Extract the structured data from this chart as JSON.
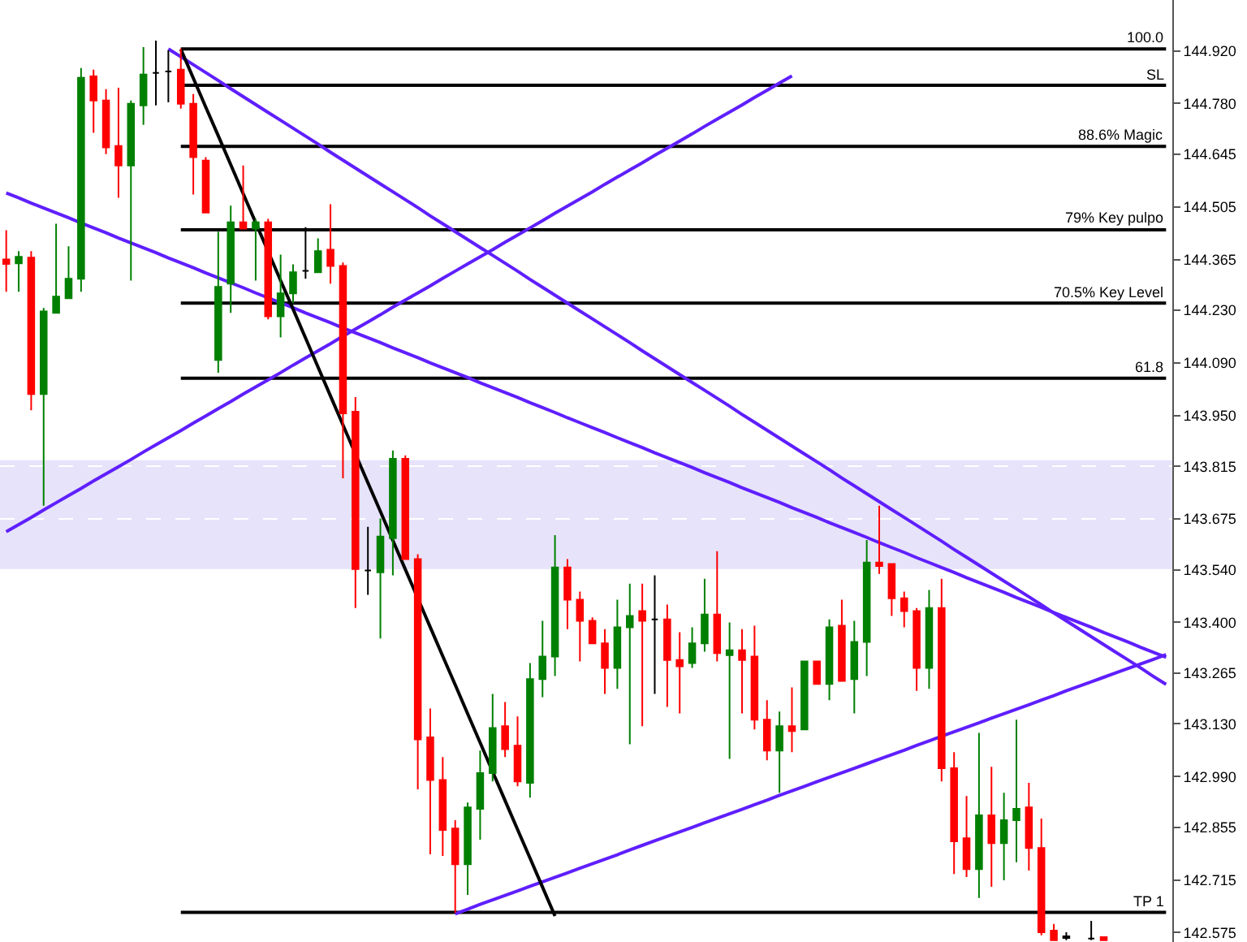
{
  "chart_data": {
    "type": "candlestick",
    "categories": [
      null,
      null,
      null,
      null,
      null,
      null,
      null,
      null,
      null,
      null,
      null,
      null,
      null,
      null,
      null,
      null,
      null,
      null,
      null,
      null,
      null,
      null,
      null,
      null,
      null,
      null,
      null,
      null,
      null,
      null,
      null,
      null,
      null,
      null,
      null,
      null,
      null,
      null,
      null,
      null,
      null,
      null,
      null,
      null,
      null,
      null,
      null,
      null,
      null,
      null,
      null,
      null,
      null,
      null,
      null,
      null,
      null,
      null,
      null,
      null,
      null,
      null,
      null,
      null,
      null,
      null,
      null,
      null,
      null,
      null,
      null,
      null,
      null,
      null,
      null,
      null,
      null,
      null,
      null,
      null,
      null,
      null,
      null,
      null,
      null,
      null,
      null,
      null,
      null,
      null,
      null,
      null,
      null,
      null
    ],
    "ohlc": [
      [
        144.365,
        144.443,
        144.279,
        144.353
      ],
      [
        144.355,
        144.387,
        144.279,
        144.372
      ],
      [
        144.37,
        144.387,
        143.964,
        144.007
      ],
      [
        144.007,
        144.236,
        143.71,
        144.227
      ],
      [
        144.223,
        144.46,
        144.223,
        144.266
      ],
      [
        144.262,
        144.4,
        144.262,
        144.314
      ],
      [
        144.314,
        144.874,
        144.279,
        144.848
      ],
      [
        144.852,
        144.87,
        144.702,
        144.788
      ],
      [
        144.788,
        144.818,
        144.645,
        144.663
      ],
      [
        144.667,
        144.822,
        144.529,
        144.615
      ],
      [
        144.615,
        144.788,
        144.309,
        144.779
      ],
      [
        144.775,
        144.93,
        144.723,
        144.857
      ],
      [
        144.861,
        144.947,
        144.775,
        144.861
      ],
      [
        144.865,
        144.921,
        144.783,
        144.865
      ],
      [
        144.87,
        144.926,
        144.766,
        144.779
      ],
      [
        144.779,
        144.805,
        144.538,
        144.637
      ],
      [
        144.628,
        144.637,
        144.49,
        144.49
      ],
      [
        144.098,
        144.439,
        144.064,
        144.292
      ],
      [
        144.301,
        144.508,
        144.223,
        144.464
      ],
      [
        144.464,
        144.615,
        144.447,
        144.447
      ],
      [
        144.447,
        144.473,
        144.309,
        144.464
      ],
      [
        144.464,
        144.473,
        144.206,
        144.214
      ],
      [
        144.214,
        144.378,
        144.158,
        144.275
      ],
      [
        144.275,
        144.352,
        144.249,
        144.331
      ],
      [
        144.335,
        144.451,
        144.314,
        144.335
      ],
      [
        144.331,
        144.421,
        144.331,
        144.387
      ],
      [
        144.391,
        144.512,
        144.301,
        144.348
      ],
      [
        144.348,
        144.357,
        143.783,
        143.956
      ],
      [
        143.96,
        143.999,
        143.438,
        143.542
      ],
      [
        143.538,
        143.654,
        143.473,
        143.538
      ],
      [
        143.533,
        143.676,
        143.357,
        143.628
      ],
      [
        143.624,
        143.857,
        143.525,
        143.835
      ],
      [
        143.835,
        143.844,
        143.568,
        143.568
      ],
      [
        143.568,
        143.581,
        142.956,
        143.089
      ],
      [
        143.094,
        143.171,
        142.783,
        142.981
      ],
      [
        142.981,
        143.042,
        142.779,
        142.848
      ],
      [
        142.852,
        142.874,
        142.628,
        142.757
      ],
      [
        142.757,
        142.921,
        142.675,
        142.908
      ],
      [
        142.904,
        143.059,
        142.822,
        142.999
      ],
      [
        142.999,
        143.21,
        142.977,
        143.119
      ],
      [
        143.124,
        143.188,
        143.042,
        143.063
      ],
      [
        143.072,
        143.15,
        142.964,
        142.977
      ],
      [
        142.973,
        143.292,
        142.934,
        143.249
      ],
      [
        143.249,
        143.404,
        143.201,
        143.309
      ],
      [
        143.309,
        143.632,
        143.257,
        143.546
      ],
      [
        143.546,
        143.568,
        143.382,
        143.46
      ],
      [
        143.46,
        143.482,
        143.296,
        143.404
      ],
      [
        143.404,
        143.413,
        143.344,
        143.344
      ],
      [
        143.344,
        143.382,
        143.21,
        143.279
      ],
      [
        143.279,
        143.46,
        143.223,
        143.387
      ],
      [
        143.387,
        143.503,
        143.076,
        143.417
      ],
      [
        143.43,
        143.503,
        143.124,
        143.404
      ],
      [
        143.408,
        143.525,
        143.21,
        143.408
      ],
      [
        143.408,
        143.447,
        143.175,
        143.3
      ],
      [
        143.3,
        143.374,
        143.158,
        143.283
      ],
      [
        143.292,
        143.387,
        143.279,
        143.344
      ],
      [
        143.344,
        143.516,
        143.322,
        143.421
      ],
      [
        143.421,
        143.589,
        143.296,
        143.318
      ],
      [
        143.313,
        143.4,
        143.037,
        143.326
      ],
      [
        143.326,
        143.382,
        143.158,
        143.3
      ],
      [
        143.309,
        143.391,
        143.115,
        143.141
      ],
      [
        143.141,
        143.193,
        143.033,
        143.059
      ],
      [
        143.059,
        143.163,
        142.947,
        143.124
      ],
      [
        143.124,
        143.227,
        143.055,
        143.111
      ],
      [
        143.115,
        143.296,
        143.115,
        143.296
      ],
      [
        143.296,
        143.296,
        143.236,
        143.236
      ],
      [
        143.236,
        143.408,
        143.193,
        143.387
      ],
      [
        143.391,
        143.46,
        143.244,
        143.244
      ],
      [
        143.249,
        143.404,
        143.158,
        143.348
      ],
      [
        143.348,
        143.619,
        143.257,
        143.559
      ],
      [
        143.559,
        143.71,
        143.529,
        143.55
      ],
      [
        143.555,
        143.555,
        143.417,
        143.464
      ],
      [
        143.464,
        143.482,
        143.387,
        143.43
      ],
      [
        143.43,
        143.438,
        143.218,
        143.279
      ],
      [
        143.279,
        143.486,
        143.223,
        143.438
      ],
      [
        143.438,
        143.516,
        142.977,
        143.012
      ],
      [
        143.012,
        143.055,
        142.731,
        142.818
      ],
      [
        142.826,
        142.938,
        142.723,
        142.744
      ],
      [
        142.744,
        143.106,
        142.667,
        142.887
      ],
      [
        142.887,
        143.016,
        142.697,
        142.813
      ],
      [
        142.813,
        142.947,
        142.714,
        142.874
      ],
      [
        142.874,
        143.141,
        142.762,
        142.904
      ],
      [
        142.908,
        142.973,
        142.74,
        142.8
      ],
      [
        142.8,
        142.878,
        142.568,
        142.576
      ],
      [
        142.58,
        142.598,
        142.555,
        142.555
      ],
      [
        142.565,
        142.576,
        142.555,
        142.561
      ],
      null,
      [
        142.559,
        142.606,
        142.555,
        142.559
      ],
      [
        142.563,
        142.563,
        142.555,
        142.555
      ],
      null,
      null,
      null,
      null,
      null
    ],
    "colors": [
      "#ff0000",
      "#008000",
      "#ff0000",
      "#008000",
      "#008000",
      "#008000",
      "#008000",
      "#ff0000",
      "#ff0000",
      "#ff0000",
      "#008000",
      "#008000",
      "#000000",
      "#000000",
      "#ff0000",
      "#ff0000",
      "#ff0000",
      "#008000",
      "#008000",
      "#ff0000",
      "#008000",
      "#ff0000",
      "#008000",
      "#008000",
      "#000000",
      "#008000",
      "#ff0000",
      "#ff0000",
      "#ff0000",
      "#000000",
      "#008000",
      "#008000",
      "#ff0000",
      "#ff0000",
      "#ff0000",
      "#ff0000",
      "#ff0000",
      "#008000",
      "#008000",
      "#008000",
      "#ff0000",
      "#ff0000",
      "#008000",
      "#008000",
      "#008000",
      "#ff0000",
      "#ff0000",
      "#ff0000",
      "#ff0000",
      "#008000",
      "#008000",
      "#ff0000",
      "#000000",
      "#ff0000",
      "#ff0000",
      "#008000",
      "#008000",
      "#ff0000",
      "#008000",
      "#ff0000",
      "#ff0000",
      "#ff0000",
      "#008000",
      "#ff0000",
      "#008000",
      "#ff0000",
      "#008000",
      "#ff0000",
      "#008000",
      "#008000",
      "#ff0000",
      "#ff0000",
      "#ff0000",
      "#ff0000",
      "#008000",
      "#ff0000",
      "#ff0000",
      "#ff0000",
      "#008000",
      "#ff0000",
      "#008000",
      "#008000",
      "#ff0000",
      "#ff0000",
      "#ff0000",
      "#000000",
      null,
      "#000000",
      "#ff0000",
      null,
      null,
      null,
      null,
      null
    ],
    "series": [
      {
        "type": "line",
        "name": "100.0",
        "color": "#000000",
        "values": [
          null,
          null,
          null,
          null,
          null,
          null,
          null,
          null,
          null,
          null,
          null,
          null,
          null,
          null,
          144.925,
          144.925,
          144.925,
          144.925,
          144.925,
          144.925,
          144.925,
          144.925,
          144.925,
          144.925,
          144.925,
          144.925,
          144.925,
          144.925,
          144.925,
          144.925,
          144.925,
          144.925,
          144.925,
          144.925,
          144.925,
          144.925,
          144.925,
          144.925,
          144.925,
          144.925,
          144.925,
          144.925,
          144.925,
          144.925,
          144.925,
          144.925,
          144.925,
          144.925,
          144.925,
          144.925,
          144.925,
          144.925,
          144.925,
          144.925,
          144.925,
          144.925,
          144.925,
          144.925,
          144.925,
          144.925,
          144.925,
          144.925,
          144.925,
          144.925,
          144.925,
          144.925,
          144.925,
          144.925,
          144.925,
          144.925,
          144.925,
          144.925,
          144.925,
          144.925,
          144.925,
          144.925,
          144.925,
          144.925,
          144.925,
          144.925,
          144.925,
          144.925,
          144.925,
          144.925,
          144.925,
          144.925,
          144.925,
          144.925,
          144.925,
          144.925,
          144.925,
          144.925,
          144.925,
          144.925
        ]
      },
      {
        "type": "line",
        "name": "SL",
        "color": "#000000",
        "values": [
          null,
          null,
          null,
          null,
          null,
          null,
          null,
          null,
          null,
          null,
          null,
          null,
          null,
          null,
          144.828,
          144.828,
          144.828,
          144.828,
          144.828,
          144.828,
          144.828,
          144.828,
          144.828,
          144.828,
          144.828,
          144.828,
          144.828,
          144.828,
          144.828,
          144.828,
          144.828,
          144.828,
          144.828,
          144.828,
          144.828,
          144.828,
          144.828,
          144.828,
          144.828,
          144.828,
          144.828,
          144.828,
          144.828,
          144.828,
          144.828,
          144.828,
          144.828,
          144.828,
          144.828,
          144.828,
          144.828,
          144.828,
          144.828,
          144.828,
          144.828,
          144.828,
          144.828,
          144.828,
          144.828,
          144.828,
          144.828,
          144.828,
          144.828,
          144.828,
          144.828,
          144.828,
          144.828,
          144.828,
          144.828,
          144.828,
          144.828,
          144.828,
          144.828,
          144.828,
          144.828,
          144.828,
          144.828,
          144.828,
          144.828,
          144.828,
          144.828,
          144.828,
          144.828,
          144.828,
          144.828,
          144.828,
          144.828,
          144.828,
          144.828,
          144.828,
          144.828,
          144.828,
          144.828,
          144.828
        ]
      },
      {
        "type": "line",
        "name": "88.6% Magic",
        "color": "#000000",
        "values": [
          null,
          null,
          null,
          null,
          null,
          null,
          null,
          null,
          null,
          null,
          null,
          null,
          null,
          null,
          144.666,
          144.666,
          144.666,
          144.666,
          144.666,
          144.666,
          144.666,
          144.666,
          144.666,
          144.666,
          144.666,
          144.666,
          144.666,
          144.666,
          144.666,
          144.666,
          144.666,
          144.666,
          144.666,
          144.666,
          144.666,
          144.666,
          144.666,
          144.666,
          144.666,
          144.666,
          144.666,
          144.666,
          144.666,
          144.666,
          144.666,
          144.666,
          144.666,
          144.666,
          144.666,
          144.666,
          144.666,
          144.666,
          144.666,
          144.666,
          144.666,
          144.666,
          144.666,
          144.666,
          144.666,
          144.666,
          144.666,
          144.666,
          144.666,
          144.666,
          144.666,
          144.666,
          144.666,
          144.666,
          144.666,
          144.666,
          144.666,
          144.666,
          144.666,
          144.666,
          144.666,
          144.666,
          144.666,
          144.666,
          144.666,
          144.666,
          144.666,
          144.666,
          144.666,
          144.666,
          144.666,
          144.666,
          144.666,
          144.666,
          144.666,
          144.666,
          144.666,
          144.666,
          144.666,
          144.666
        ]
      },
      {
        "type": "line",
        "name": "79% Key pulpo",
        "color": "#000000",
        "values": [
          null,
          null,
          null,
          null,
          null,
          null,
          null,
          null,
          null,
          null,
          null,
          null,
          null,
          null,
          144.444,
          144.444,
          144.444,
          144.444,
          144.444,
          144.444,
          144.444,
          144.444,
          144.444,
          144.444,
          144.444,
          144.444,
          144.444,
          144.444,
          144.444,
          144.444,
          144.444,
          144.444,
          144.444,
          144.444,
          144.444,
          144.444,
          144.444,
          144.444,
          144.444,
          144.444,
          144.444,
          144.444,
          144.444,
          144.444,
          144.444,
          144.444,
          144.444,
          144.444,
          144.444,
          144.444,
          144.444,
          144.444,
          144.444,
          144.444,
          144.444,
          144.444,
          144.444,
          144.444,
          144.444,
          144.444,
          144.444,
          144.444,
          144.444,
          144.444,
          144.444,
          144.444,
          144.444,
          144.444,
          144.444,
          144.444,
          144.444,
          144.444,
          144.444,
          144.444,
          144.444,
          144.444,
          144.444,
          144.444,
          144.444,
          144.444,
          144.444,
          144.444,
          144.444,
          144.444,
          144.444,
          144.444,
          144.444,
          144.444,
          144.444,
          144.444,
          144.444,
          144.444,
          144.444,
          144.444
        ]
      },
      {
        "type": "line",
        "name": "70.5% Key Level",
        "color": "#000000",
        "values": [
          null,
          null,
          null,
          null,
          null,
          null,
          null,
          null,
          null,
          null,
          null,
          null,
          null,
          null,
          144.249,
          144.249,
          144.249,
          144.249,
          144.249,
          144.249,
          144.249,
          144.249,
          144.249,
          144.249,
          144.249,
          144.249,
          144.249,
          144.249,
          144.249,
          144.249,
          144.249,
          144.249,
          144.249,
          144.249,
          144.249,
          144.249,
          144.249,
          144.249,
          144.249,
          144.249,
          144.249,
          144.249,
          144.249,
          144.249,
          144.249,
          144.249,
          144.249,
          144.249,
          144.249,
          144.249,
          144.249,
          144.249,
          144.249,
          144.249,
          144.249,
          144.249,
          144.249,
          144.249,
          144.249,
          144.249,
          144.249,
          144.249,
          144.249,
          144.249,
          144.249,
          144.249,
          144.249,
          144.249,
          144.249,
          144.249,
          144.249,
          144.249,
          144.249,
          144.249,
          144.249,
          144.249,
          144.249,
          144.249,
          144.249,
          144.249,
          144.249,
          144.249,
          144.249,
          144.249,
          144.249,
          144.249,
          144.249,
          144.249,
          144.249,
          144.249,
          144.249,
          144.249,
          144.249,
          144.249
        ]
      },
      {
        "type": "line",
        "name": "61.8",
        "color": "#000000",
        "values": [
          null,
          null,
          null,
          null,
          null,
          null,
          null,
          null,
          null,
          null,
          null,
          null,
          null,
          null,
          144.049,
          144.049,
          144.049,
          144.049,
          144.049,
          144.049,
          144.049,
          144.049,
          144.049,
          144.049,
          144.049,
          144.049,
          144.049,
          144.049,
          144.049,
          144.049,
          144.049,
          144.049,
          144.049,
          144.049,
          144.049,
          144.049,
          144.049,
          144.049,
          144.049,
          144.049,
          144.049,
          144.049,
          144.049,
          144.049,
          144.049,
          144.049,
          144.049,
          144.049,
          144.049,
          144.049,
          144.049,
          144.049,
          144.049,
          144.049,
          144.049,
          144.049,
          144.049,
          144.049,
          144.049,
          144.049,
          144.049,
          144.049,
          144.049,
          144.049,
          144.049,
          144.049,
          144.049,
          144.049,
          144.049,
          144.049,
          144.049,
          144.049,
          144.049,
          144.049,
          144.049,
          144.049,
          144.049,
          144.049,
          144.049,
          144.049,
          144.049,
          144.049,
          144.049,
          144.049,
          144.049,
          144.049,
          144.049,
          144.049,
          144.049,
          144.049,
          144.049,
          144.049,
          144.049,
          144.049
        ]
      },
      {
        "type": "line",
        "name": "TP 1",
        "color": "#000000",
        "values": [
          null,
          null,
          null,
          null,
          null,
          null,
          null,
          null,
          null,
          null,
          null,
          null,
          null,
          null,
          142.629,
          142.629,
          142.629,
          142.629,
          142.629,
          142.629,
          142.629,
          142.629,
          142.629,
          142.629,
          142.629,
          142.629,
          142.629,
          142.629,
          142.629,
          142.629,
          142.629,
          142.629,
          142.629,
          142.629,
          142.629,
          142.629,
          142.629,
          142.629,
          142.629,
          142.629,
          142.629,
          142.629,
          142.629,
          142.629,
          142.629,
          142.629,
          142.629,
          142.629,
          142.629,
          142.629,
          142.629,
          142.629,
          142.629,
          142.629,
          142.629,
          142.629,
          142.629,
          142.629,
          142.629,
          142.629,
          142.629,
          142.629,
          142.629,
          142.629,
          142.629,
          142.629,
          142.629,
          142.629,
          142.629,
          142.629,
          142.629,
          142.629,
          142.629,
          142.629,
          142.629,
          142.629,
          142.629,
          142.629,
          142.629,
          142.629,
          142.629,
          142.629,
          142.629,
          142.629,
          142.629,
          142.629,
          142.629,
          142.629,
          142.629,
          142.629,
          142.629,
          142.629,
          142.629,
          142.629
        ]
      },
      {
        "type": "line",
        "color": "#5f1fff",
        "values": [
          143.641,
          143.66,
          143.679,
          143.699,
          143.718,
          143.737,
          143.756,
          143.776,
          143.795,
          143.814,
          143.833,
          143.853,
          143.872,
          143.891,
          143.91,
          143.93,
          143.949,
          143.968,
          143.987,
          144.007,
          144.026,
          144.045,
          144.064,
          144.084,
          144.103,
          144.122,
          144.141,
          144.161,
          144.18,
          144.199,
          144.218,
          144.238,
          144.257,
          144.276,
          144.295,
          144.315,
          144.334,
          144.353,
          144.372,
          144.391,
          144.411,
          144.43,
          144.449,
          144.468,
          144.488,
          144.507,
          144.526,
          144.545,
          144.565,
          144.584,
          144.603,
          144.622,
          144.642,
          144.661,
          144.68,
          144.699,
          144.719,
          144.738,
          144.757,
          144.776,
          144.796,
          144.815,
          144.834,
          144.853,
          null,
          null,
          null,
          null,
          null,
          null,
          null,
          null,
          null,
          null,
          null,
          null,
          null,
          null,
          null,
          null,
          null,
          null,
          null,
          null,
          null,
          null,
          null,
          null,
          null,
          null,
          null,
          null,
          null,
          null
        ]
      },
      {
        "type": "line",
        "color": "#5f1fff",
        "values": [
          144.542,
          144.529,
          144.515,
          144.502,
          144.489,
          144.476,
          144.462,
          144.449,
          144.436,
          144.422,
          144.409,
          144.396,
          144.383,
          144.369,
          144.356,
          144.343,
          144.329,
          144.316,
          144.303,
          144.29,
          144.276,
          144.263,
          144.25,
          144.237,
          144.223,
          144.21,
          144.197,
          144.183,
          144.17,
          144.157,
          144.144,
          144.13,
          144.117,
          144.104,
          144.09,
          144.077,
          144.064,
          144.051,
          144.037,
          144.024,
          144.011,
          143.998,
          143.984,
          143.971,
          143.958,
          143.944,
          143.931,
          143.918,
          143.905,
          143.891,
          143.878,
          143.865,
          143.851,
          143.838,
          143.825,
          143.812,
          143.798,
          143.785,
          143.772,
          143.758,
          143.745,
          143.732,
          143.719,
          143.705,
          143.692,
          143.679,
          143.665,
          143.652,
          143.639,
          143.626,
          143.612,
          143.599,
          143.586,
          143.572,
          143.559,
          143.546,
          143.533,
          143.519,
          143.506,
          143.493,
          143.48,
          143.466,
          143.453,
          143.44,
          143.426,
          143.413,
          143.4,
          143.387,
          143.373,
          143.36,
          143.347,
          143.333,
          143.32,
          143.307
        ]
      },
      {
        "type": "line",
        "color": "#5f1fff",
        "values": [
          null,
          null,
          null,
          null,
          null,
          null,
          null,
          null,
          null,
          null,
          null,
          null,
          null,
          144.925,
          144.904,
          144.883,
          144.862,
          144.841,
          144.819,
          144.798,
          144.777,
          144.756,
          144.735,
          144.714,
          144.693,
          144.672,
          144.65,
          144.629,
          144.608,
          144.587,
          144.566,
          144.545,
          144.524,
          144.503,
          144.481,
          144.46,
          144.439,
          144.418,
          144.397,
          144.376,
          144.355,
          144.334,
          144.312,
          144.291,
          144.27,
          144.249,
          144.228,
          144.207,
          144.186,
          144.165,
          144.144,
          144.122,
          144.101,
          144.08,
          144.059,
          144.038,
          144.017,
          143.996,
          143.975,
          143.953,
          143.932,
          143.911,
          143.89,
          143.869,
          143.848,
          143.827,
          143.806,
          143.784,
          143.763,
          143.742,
          143.721,
          143.7,
          143.679,
          143.658,
          143.637,
          143.616,
          143.594,
          143.573,
          143.552,
          143.531,
          143.51,
          143.489,
          143.468,
          143.447,
          143.425,
          143.404,
          143.383,
          143.362,
          143.341,
          143.32,
          143.299,
          143.278,
          143.256,
          143.235
        ]
      },
      {
        "type": "line",
        "color": "#5f1fff",
        "values": [
          null,
          null,
          null,
          null,
          null,
          null,
          null,
          null,
          null,
          null,
          null,
          null,
          null,
          null,
          null,
          null,
          null,
          null,
          null,
          null,
          null,
          null,
          null,
          null,
          null,
          null,
          null,
          null,
          null,
          null,
          null,
          null,
          null,
          null,
          null,
          null,
          142.625,
          142.637,
          142.65,
          142.662,
          142.674,
          142.686,
          142.698,
          142.71,
          142.722,
          142.734,
          142.746,
          142.758,
          142.77,
          142.782,
          142.795,
          142.807,
          142.819,
          142.831,
          142.843,
          142.855,
          142.867,
          142.879,
          142.891,
          142.903,
          142.915,
          142.927,
          142.94,
          142.952,
          142.964,
          142.976,
          142.988,
          143.0,
          143.012,
          143.024,
          143.036,
          143.048,
          143.06,
          143.073,
          143.085,
          143.097,
          143.109,
          143.121,
          143.133,
          143.145,
          143.157,
          143.169,
          143.181,
          143.193,
          143.205,
          143.218,
          143.23,
          143.242,
          143.254,
          143.266,
          143.278,
          143.29,
          143.302,
          143.314
        ]
      },
      {
        "type": "line",
        "color": "#000000",
        "values": [
          null,
          null,
          null,
          null,
          null,
          null,
          null,
          null,
          null,
          null,
          null,
          null,
          null,
          null,
          144.924,
          144.847,
          144.77,
          144.694,
          144.617,
          144.54,
          144.463,
          144.386,
          144.309,
          144.233,
          144.156,
          144.079,
          144.002,
          143.925,
          143.848,
          143.771,
          143.695,
          143.618,
          143.541,
          143.464,
          143.387,
          143.31,
          143.234,
          143.157,
          143.08,
          143.003,
          142.926,
          142.849,
          142.773,
          142.696,
          142.619,
          null,
          null,
          null,
          null,
          null,
          null,
          null,
          null,
          null,
          null,
          null,
          null,
          null,
          null,
          null,
          null,
          null,
          null,
          null,
          null,
          null,
          null,
          null,
          null,
          null,
          null,
          null,
          null,
          null,
          null,
          null,
          null,
          null,
          null,
          null,
          null,
          null,
          null,
          null,
          null,
          null,
          null,
          null,
          null,
          null,
          null,
          null,
          null,
          null
        ]
      }
    ],
    "ylim": [
      142.55,
      145.055
    ],
    "yticks": [
      {
        "value": 144.92,
        "label": "144.920"
      },
      {
        "value": 144.78,
        "label": "144.780"
      },
      {
        "value": 144.645,
        "label": "144.645"
      },
      {
        "value": 144.505,
        "label": "144.505"
      },
      {
        "value": 144.365,
        "label": "144.365"
      },
      {
        "value": 144.23,
        "label": "144.230"
      },
      {
        "value": 144.09,
        "label": "144.090"
      },
      {
        "value": 143.95,
        "label": "143.950"
      },
      {
        "value": 143.815,
        "label": "143.815"
      },
      {
        "value": 143.675,
        "label": "143.675"
      },
      {
        "value": 143.54,
        "label": "143.540"
      },
      {
        "value": 143.4,
        "label": "143.400"
      },
      {
        "value": 143.265,
        "label": "143.265"
      },
      {
        "value": 143.13,
        "label": "143.130"
      },
      {
        "value": 142.99,
        "label": "142.990"
      },
      {
        "value": 142.855,
        "label": "142.855"
      },
      {
        "value": 142.715,
        "label": "142.715"
      },
      {
        "value": 142.575,
        "label": "142.575"
      }
    ],
    "tick_labels": "y",
    "grid": "y",
    "bands": [
      {
        "axis": "y",
        "from": 143.542,
        "to": 143.831,
        "color": "#e6e3fa"
      }
    ]
  }
}
